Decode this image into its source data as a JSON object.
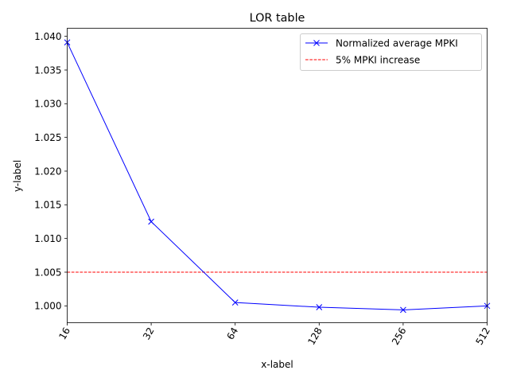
{
  "chart_data": {
    "type": "line",
    "title": "LOR table",
    "xlabel": "x-label",
    "ylabel": "y-label",
    "categories": [
      "16",
      "32",
      "64",
      "128",
      "256",
      "512"
    ],
    "series": [
      {
        "name": "Normalized average MPKI",
        "values": [
          1.0391,
          1.0125,
          1.0005,
          0.9998,
          0.9994,
          1.0
        ],
        "color": "#0000ff",
        "marker": "x",
        "style": "solid"
      }
    ],
    "reference_line": {
      "name": "5% MPKI increase",
      "value": 1.005,
      "color": "#ff0000",
      "style": "dashed"
    },
    "ylim": [
      0.9975,
      1.0412
    ],
    "yticks": [
      "1.000",
      "1.005",
      "1.010",
      "1.015",
      "1.020",
      "1.025",
      "1.030",
      "1.035",
      "1.040"
    ],
    "xtick_rotation_deg": 60,
    "legend": "top-right",
    "grid": false
  }
}
